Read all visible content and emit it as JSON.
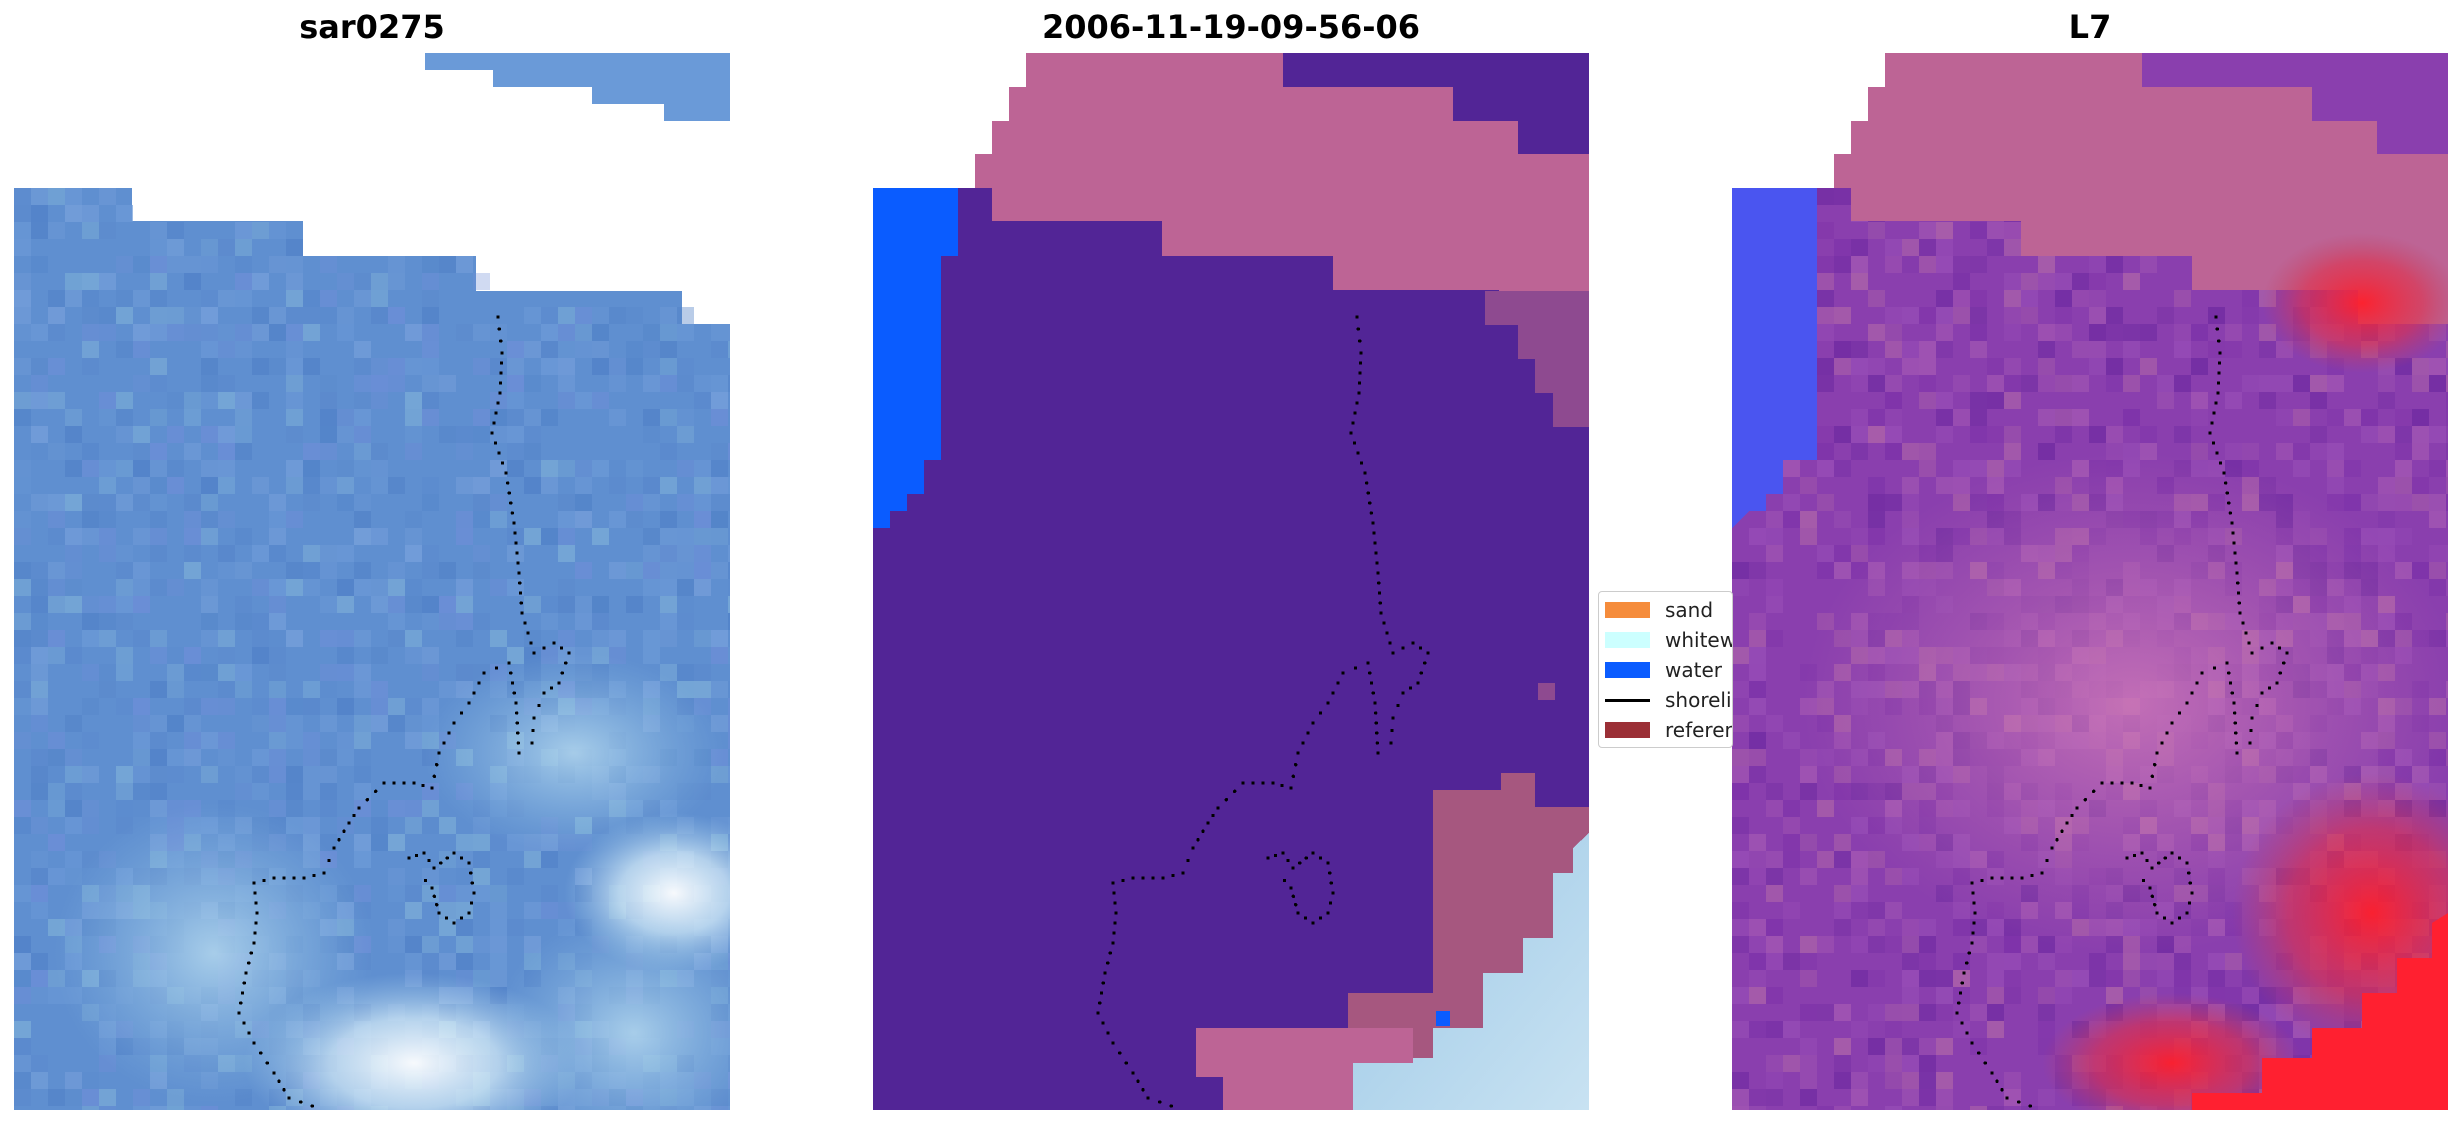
{
  "panels": [
    {
      "title": "sar0275"
    },
    {
      "title": "2006-11-19-09-56-06"
    },
    {
      "title": "L7"
    }
  ],
  "legend": {
    "items": [
      {
        "label": "sand",
        "color": "#f58c3c",
        "kind": "patch"
      },
      {
        "label": "whitewater",
        "color": "#ccffff",
        "kind": "patch"
      },
      {
        "label": "water",
        "color": "#0a5cff",
        "kind": "patch"
      },
      {
        "label": "shoreline",
        "color": "#000000",
        "kind": "line"
      },
      {
        "label": "reference",
        "color": "#9b2f36",
        "kind": "patch"
      }
    ]
  },
  "colors": {
    "imagery_blue": "#5f8fd0",
    "imagery_light": "#9cc8e6",
    "classified_sand_overlay": "#bd6495",
    "classified_other": "#522596",
    "classified_water": "#0a5cff",
    "l7_purple": "#8a3fae",
    "l7_pink": "#c77ab0",
    "l7_red": "#ff1f2a",
    "l7_blue": "#3e4dfa"
  }
}
